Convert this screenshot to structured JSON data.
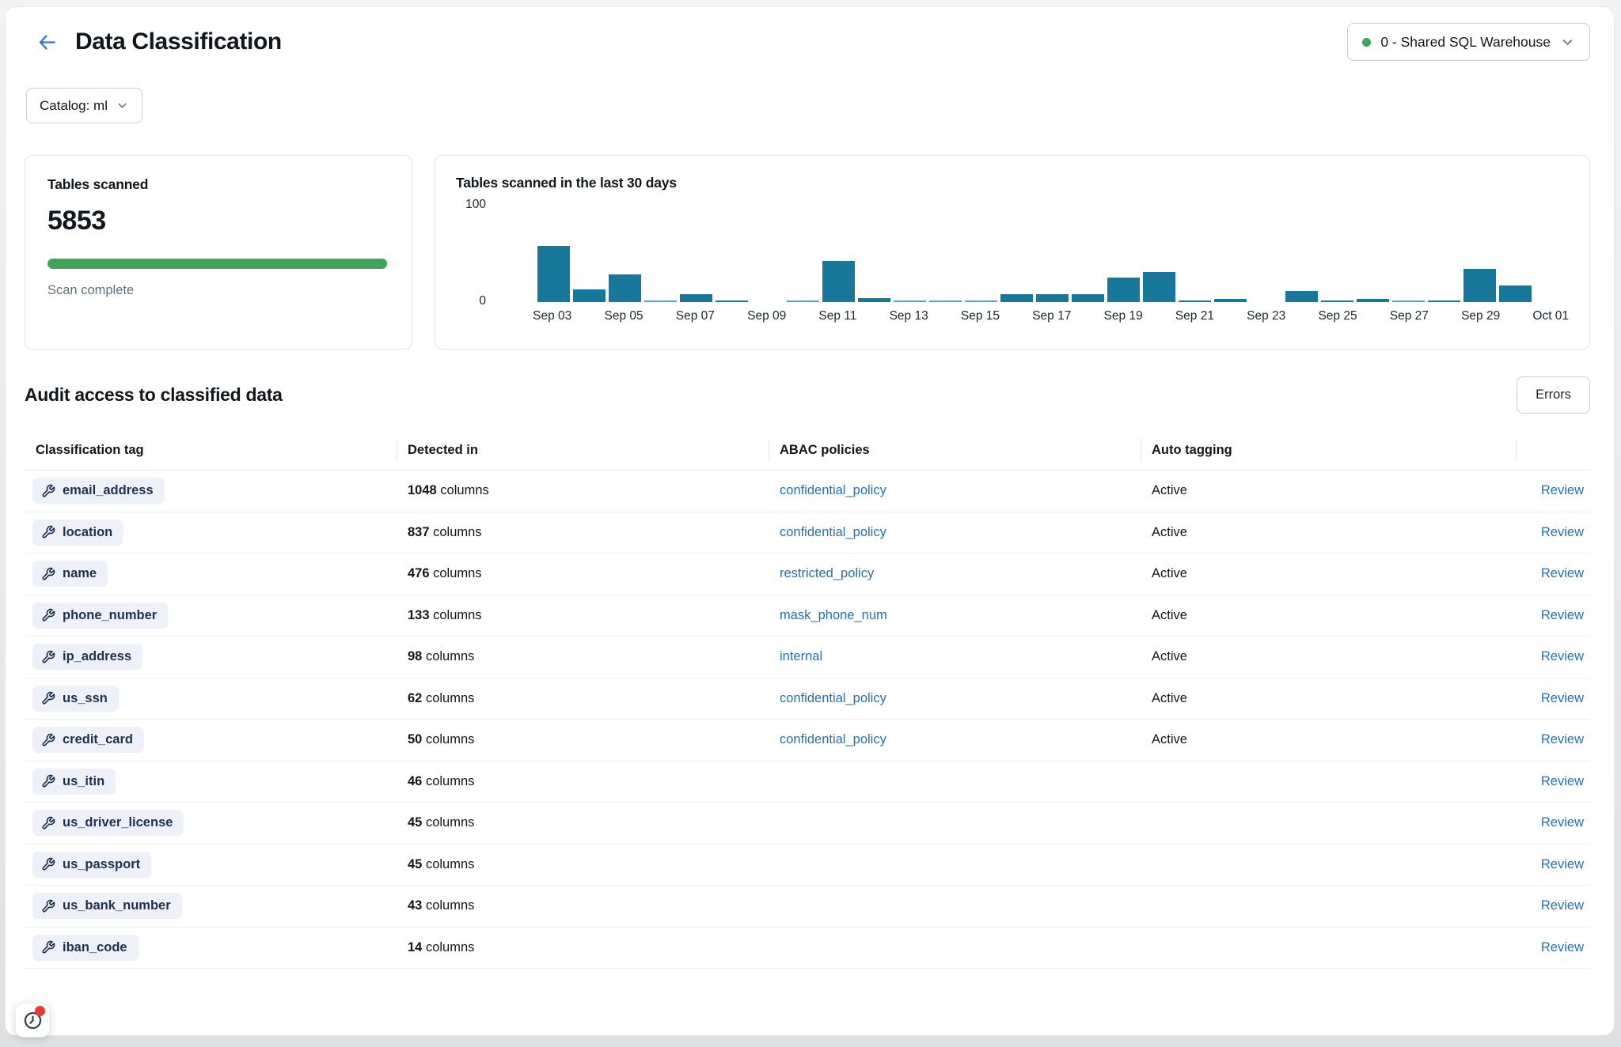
{
  "page": {
    "title": "Data Classification",
    "warehouse": {
      "name": "0 - Shared SQL Warehouse",
      "status": "running",
      "status_color": "#3fa45b"
    },
    "catalog_filter": "Catalog: ml"
  },
  "summary_card": {
    "title": "Tables scanned",
    "count": "5853",
    "status": "Scan complete",
    "progress_percent": 100
  },
  "chart_card": {
    "title": "Tables scanned in the last 30 days"
  },
  "chart_data": {
    "type": "bar",
    "title": "Tables scanned in the last 30 days",
    "x": [
      "Sep 02",
      "Sep 03",
      "Sep 04",
      "Sep 05",
      "Sep 06",
      "Sep 07",
      "Sep 08",
      "Sep 09",
      "Sep 10",
      "Sep 11",
      "Sep 12",
      "Sep 13",
      "Sep 14",
      "Sep 15",
      "Sep 16",
      "Sep 17",
      "Sep 18",
      "Sep 19",
      "Sep 20",
      "Sep 21",
      "Sep 22",
      "Sep 23",
      "Sep 24",
      "Sep 25",
      "Sep 26",
      "Sep 27",
      "Sep 28",
      "Sep 29",
      "Sep 30",
      "Oct 01"
    ],
    "values": [
      0,
      57,
      13,
      28,
      1,
      8,
      2,
      0,
      1,
      42,
      4,
      1,
      1,
      1,
      8,
      8,
      8,
      25,
      31,
      2,
      3,
      0,
      11,
      2,
      3,
      1,
      2,
      34,
      17,
      0
    ],
    "xtick_labels": [
      "Sep 03",
      "Sep 05",
      "Sep 07",
      "Sep 09",
      "Sep 11",
      "Sep 13",
      "Sep 15",
      "Sep 17",
      "Sep 19",
      "Sep 21",
      "Sep 23",
      "Sep 25",
      "Sep 27",
      "Sep 29",
      "Oct 01"
    ],
    "yticks": [
      0,
      100
    ],
    "ylim": [
      0,
      100
    ],
    "bar_color": "#17789b",
    "grid": false,
    "legend": false
  },
  "audit": {
    "title": "Audit access to classified data",
    "errors_button": "Errors",
    "table": {
      "headers": [
        "Classification tag",
        "Detected in",
        "ABAC policies",
        "Auto tagging"
      ],
      "count_suffix": "columns",
      "review_label": "Review",
      "rows": [
        {
          "tag": "email_address",
          "count": "1048",
          "policy": "confidential_policy",
          "auto_tagging": "Active"
        },
        {
          "tag": "location",
          "count": "837",
          "policy": "confidential_policy",
          "auto_tagging": "Active"
        },
        {
          "tag": "name",
          "count": "476",
          "policy": "restricted_policy",
          "auto_tagging": "Active"
        },
        {
          "tag": "phone_number",
          "count": "133",
          "policy": "mask_phone_num",
          "auto_tagging": "Active"
        },
        {
          "tag": "ip_address",
          "count": "98",
          "policy": "internal",
          "auto_tagging": "Active"
        },
        {
          "tag": "us_ssn",
          "count": "62",
          "policy": "confidential_policy",
          "auto_tagging": "Active"
        },
        {
          "tag": "credit_card",
          "count": "50",
          "policy": "confidential_policy",
          "auto_tagging": "Active"
        },
        {
          "tag": "us_itin",
          "count": "46",
          "policy": "",
          "auto_tagging": ""
        },
        {
          "tag": "us_driver_license",
          "count": "45",
          "policy": "",
          "auto_tagging": ""
        },
        {
          "tag": "us_passport",
          "count": "45",
          "policy": "",
          "auto_tagging": ""
        },
        {
          "tag": "us_bank_number",
          "count": "43",
          "policy": "",
          "auto_tagging": ""
        },
        {
          "tag": "iban_code",
          "count": "14",
          "policy": "",
          "auto_tagging": ""
        }
      ]
    }
  },
  "colors": {
    "accent_blue": "#2272b4",
    "bar_teal": "#17789b",
    "green": "#3fa45b",
    "tag_text_navy": "#1e3150",
    "tag_pill_bg": "#eef0fa"
  },
  "floating": {
    "notifications": {
      "icon": "clock-icon",
      "has_alert": true
    }
  }
}
